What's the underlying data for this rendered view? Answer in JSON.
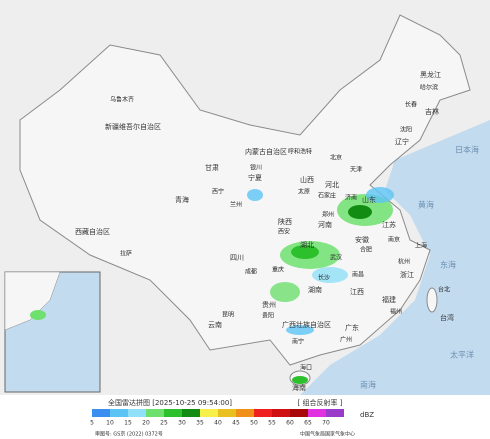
{
  "title": "全国雷达拼图 [2025-10-25 09:54:00]",
  "product": "[ 组合反射率 ]",
  "unit": "dBZ",
  "scale": [
    {
      "value": 5,
      "color": "#3a8ff0"
    },
    {
      "value": 10,
      "color": "#5cc4f5"
    },
    {
      "value": 15,
      "color": "#8fe0f8"
    },
    {
      "value": 20,
      "color": "#6ee06e"
    },
    {
      "value": 25,
      "color": "#2cc02c"
    },
    {
      "value": 30,
      "color": "#138c13"
    },
    {
      "value": 35,
      "color": "#f8f04a"
    },
    {
      "value": 40,
      "color": "#e8c020"
    },
    {
      "value": 45,
      "color": "#f09018"
    },
    {
      "value": 50,
      "color": "#f02020"
    },
    {
      "value": 55,
      "color": "#d01010"
    },
    {
      "value": 60,
      "color": "#a80808"
    },
    {
      "value": 65,
      "color": "#e030e0"
    },
    {
      "value": 70,
      "color": "#9a3ac8"
    }
  ],
  "footer": [
    "审图号: GS京 (2022) 0372号",
    "中国气象局国家气象中心"
  ],
  "map_labels": [
    "新疆维吾尔自治区",
    "乌鲁木齐",
    "西藏自治区",
    "拉萨",
    "青海",
    "西宁",
    "甘肃",
    "兰州",
    "内蒙古自治区",
    "呼和浩特",
    "宁夏",
    "银川",
    "陕西",
    "西安",
    "山西",
    "太原",
    "河北",
    "石家庄",
    "北京",
    "天津",
    "黑龙江",
    "哈尔滨",
    "吉林",
    "长春",
    "辽宁",
    "沈阳",
    "山东",
    "济南",
    "河南",
    "郑州",
    "江苏",
    "南京",
    "安徽",
    "合肥",
    "上海",
    "浙江",
    "杭州",
    "湖北",
    "武汉",
    "四川",
    "成都",
    "重庆",
    "贵州",
    "贵阳",
    "云南",
    "昆明",
    "湖南",
    "长沙",
    "江西",
    "南昌",
    "福建",
    "福州",
    "台湾",
    "台北",
    "广东",
    "广州",
    "广西壮族自治区",
    "南宁",
    "海南",
    "海口",
    "日本海",
    "黄海",
    "东海",
    "太平洋",
    "南海"
  ]
}
